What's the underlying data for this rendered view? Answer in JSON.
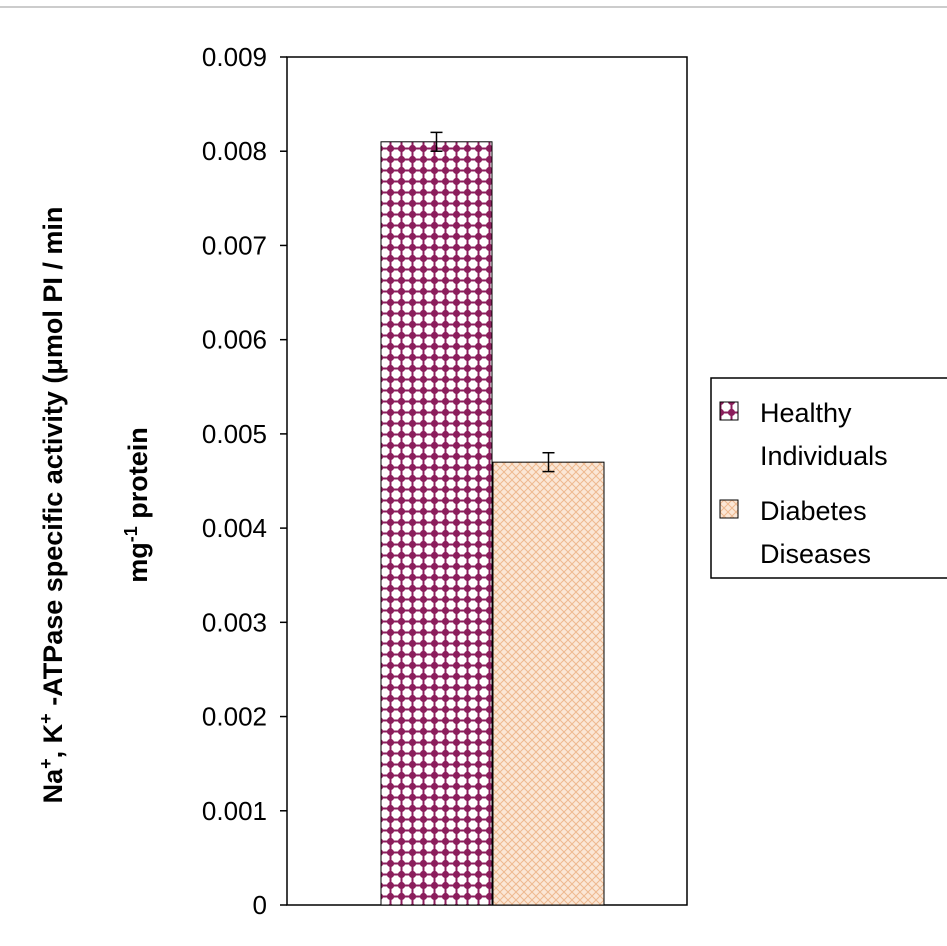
{
  "chart_data": {
    "type": "bar",
    "categories": [
      ""
    ],
    "series": [
      {
        "name": "Healthy Individuals",
        "name_lines": [
          "Healthy",
          "Individuals"
        ],
        "values": [
          0.0081
        ],
        "error": [
          0.0001
        ],
        "color": "#8B1E5C",
        "pattern": "dotted-checker"
      },
      {
        "name": "Diabetes Diseases",
        "name_lines": [
          "Diabetes",
          "Diseases"
        ],
        "values": [
          0.0047
        ],
        "error": [
          0.0001
        ],
        "color": "#F5C7A2",
        "pattern": "light-crosshatch"
      }
    ],
    "ylim": [
      0,
      0.009
    ],
    "yticks": [
      "0",
      "0.001",
      "0.002",
      "0.003",
      "0.004",
      "0.005",
      "0.006",
      "0.007",
      "0.008",
      "0.009"
    ],
    "ylabel": {
      "line1": {
        "na": "Na",
        "sup1": "+",
        "mid": ", K",
        "sup2": "+",
        "rest": " -ATPase specific activity  (μmol PI / min"
      },
      "line2": {
        "pre": "mg",
        "sup": "-1",
        "post": " protein"
      }
    },
    "xlabel": "",
    "title": "",
    "grid": false,
    "legend_position": "right"
  }
}
